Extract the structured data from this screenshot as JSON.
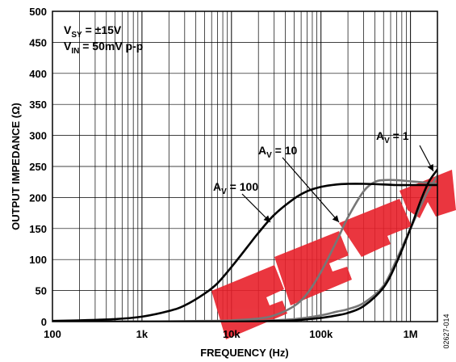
{
  "chart_data": {
    "type": "line",
    "xscale": "log",
    "xlim": [
      100,
      2000000
    ],
    "ylim": [
      0,
      500
    ],
    "xlabel": "FREQUENCY (Hz)",
    "ylabel": "OUTPUT IMPEDANCE (Ω)",
    "x_ticks": [
      "100",
      "1k",
      "10k",
      "100k",
      "1M"
    ],
    "y_ticks": [
      "0",
      "50",
      "100",
      "150",
      "200",
      "250",
      "300",
      "350",
      "400",
      "450",
      "500"
    ],
    "conditions": {
      "vsy": {
        "base": "V",
        "sub": "SY",
        "rest": " = ±15V"
      },
      "vin": {
        "base": "V",
        "sub": "IN",
        "rest": " = 50mV p-p"
      }
    },
    "series": [
      {
        "name": "AV = 100",
        "label": {
          "base": "A",
          "sub": "V",
          "rest": " = 100"
        },
        "color": "#000000",
        "x": [
          100,
          200,
          500,
          1000,
          2000,
          3000,
          5000,
          7000,
          10000,
          15000,
          20000,
          30000,
          50000,
          70000,
          100000,
          150000,
          200000,
          300000,
          500000,
          700000,
          1000000,
          1500000,
          2000000
        ],
        "y": [
          1,
          2,
          4,
          8,
          17,
          26,
          45,
          62,
          88,
          120,
          143,
          172,
          198,
          210,
          217,
          221,
          222,
          222,
          221,
          220,
          220,
          220,
          220
        ]
      },
      {
        "name": "AV = 10",
        "label": {
          "base": "A",
          "sub": "V",
          "rest": " = 10"
        },
        "color": "#777777",
        "x": [
          100,
          1000,
          5000,
          10000,
          20000,
          30000,
          50000,
          70000,
          100000,
          150000,
          200000,
          300000,
          400000,
          500000,
          700000,
          1000000,
          1500000,
          2000000
        ],
        "y": [
          0,
          0,
          1,
          2,
          5,
          10,
          25,
          45,
          80,
          130,
          168,
          210,
          225,
          228,
          228,
          226,
          224,
          222
        ]
      },
      {
        "name": "AV = 1",
        "label": {
          "base": "A",
          "sub": "V",
          "rest": " = 1"
        },
        "color": "#000000",
        "x": [
          100,
          10000,
          30000,
          50000,
          100000,
          150000,
          200000,
          300000,
          500000,
          700000,
          1000000,
          1300000,
          1600000,
          2000000
        ],
        "y": [
          0,
          0,
          1,
          2,
          6,
          10,
          14,
          25,
          55,
          95,
          150,
          195,
          225,
          245
        ]
      },
      {
        "name": "AV = 1 (light)",
        "color": "#777777",
        "x": [
          100,
          10000,
          20000,
          50000,
          100000,
          150000,
          200000,
          300000,
          500000,
          700000,
          1000000,
          1500000,
          2000000
        ],
        "y": [
          0,
          0,
          1,
          4,
          10,
          16,
          20,
          30,
          58,
          100,
          150,
          205,
          235
        ]
      }
    ],
    "grid": true,
    "watermark": "EEPW",
    "figure_code": "02627-014"
  }
}
